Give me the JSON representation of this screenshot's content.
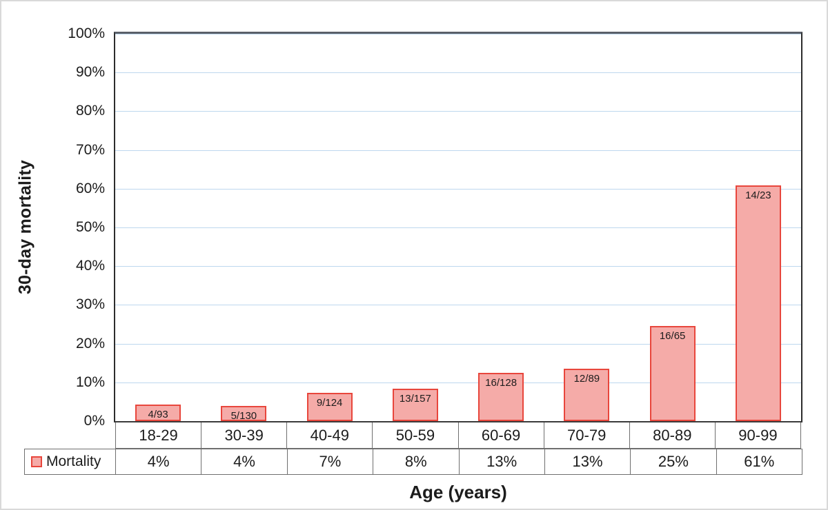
{
  "chart_data": {
    "type": "bar",
    "title": "",
    "xlabel": "Age (years)",
    "ylabel": "30-day mortality",
    "categories": [
      "18-29",
      "30-39",
      "40-49",
      "50-59",
      "60-69",
      "70-79",
      "80-89",
      "90-99"
    ],
    "series": [
      {
        "name": "Mortality",
        "values_pct": [
          4.3,
          3.85,
          7.26,
          8.28,
          12.5,
          13.48,
          24.62,
          60.87
        ],
        "bar_labels": [
          "4/93",
          "5/130",
          "9/124",
          "13/157",
          "16/128",
          "12/89",
          "16/65",
          "14/23"
        ],
        "table_values": [
          "4%",
          "4%",
          "7%",
          "8%",
          "13%",
          "13%",
          "25%",
          "61%"
        ]
      }
    ],
    "y_ticks": [
      "0%",
      "10%",
      "20%",
      "30%",
      "40%",
      "50%",
      "60%",
      "70%",
      "80%",
      "90%",
      "100%"
    ],
    "ylim": [
      0,
      100
    ],
    "grid": true,
    "legend_position": "table-left",
    "colors": {
      "bar_fill": "#F5ABA8",
      "bar_border": "#E8463C",
      "gridline": "#BDD7EE"
    }
  }
}
